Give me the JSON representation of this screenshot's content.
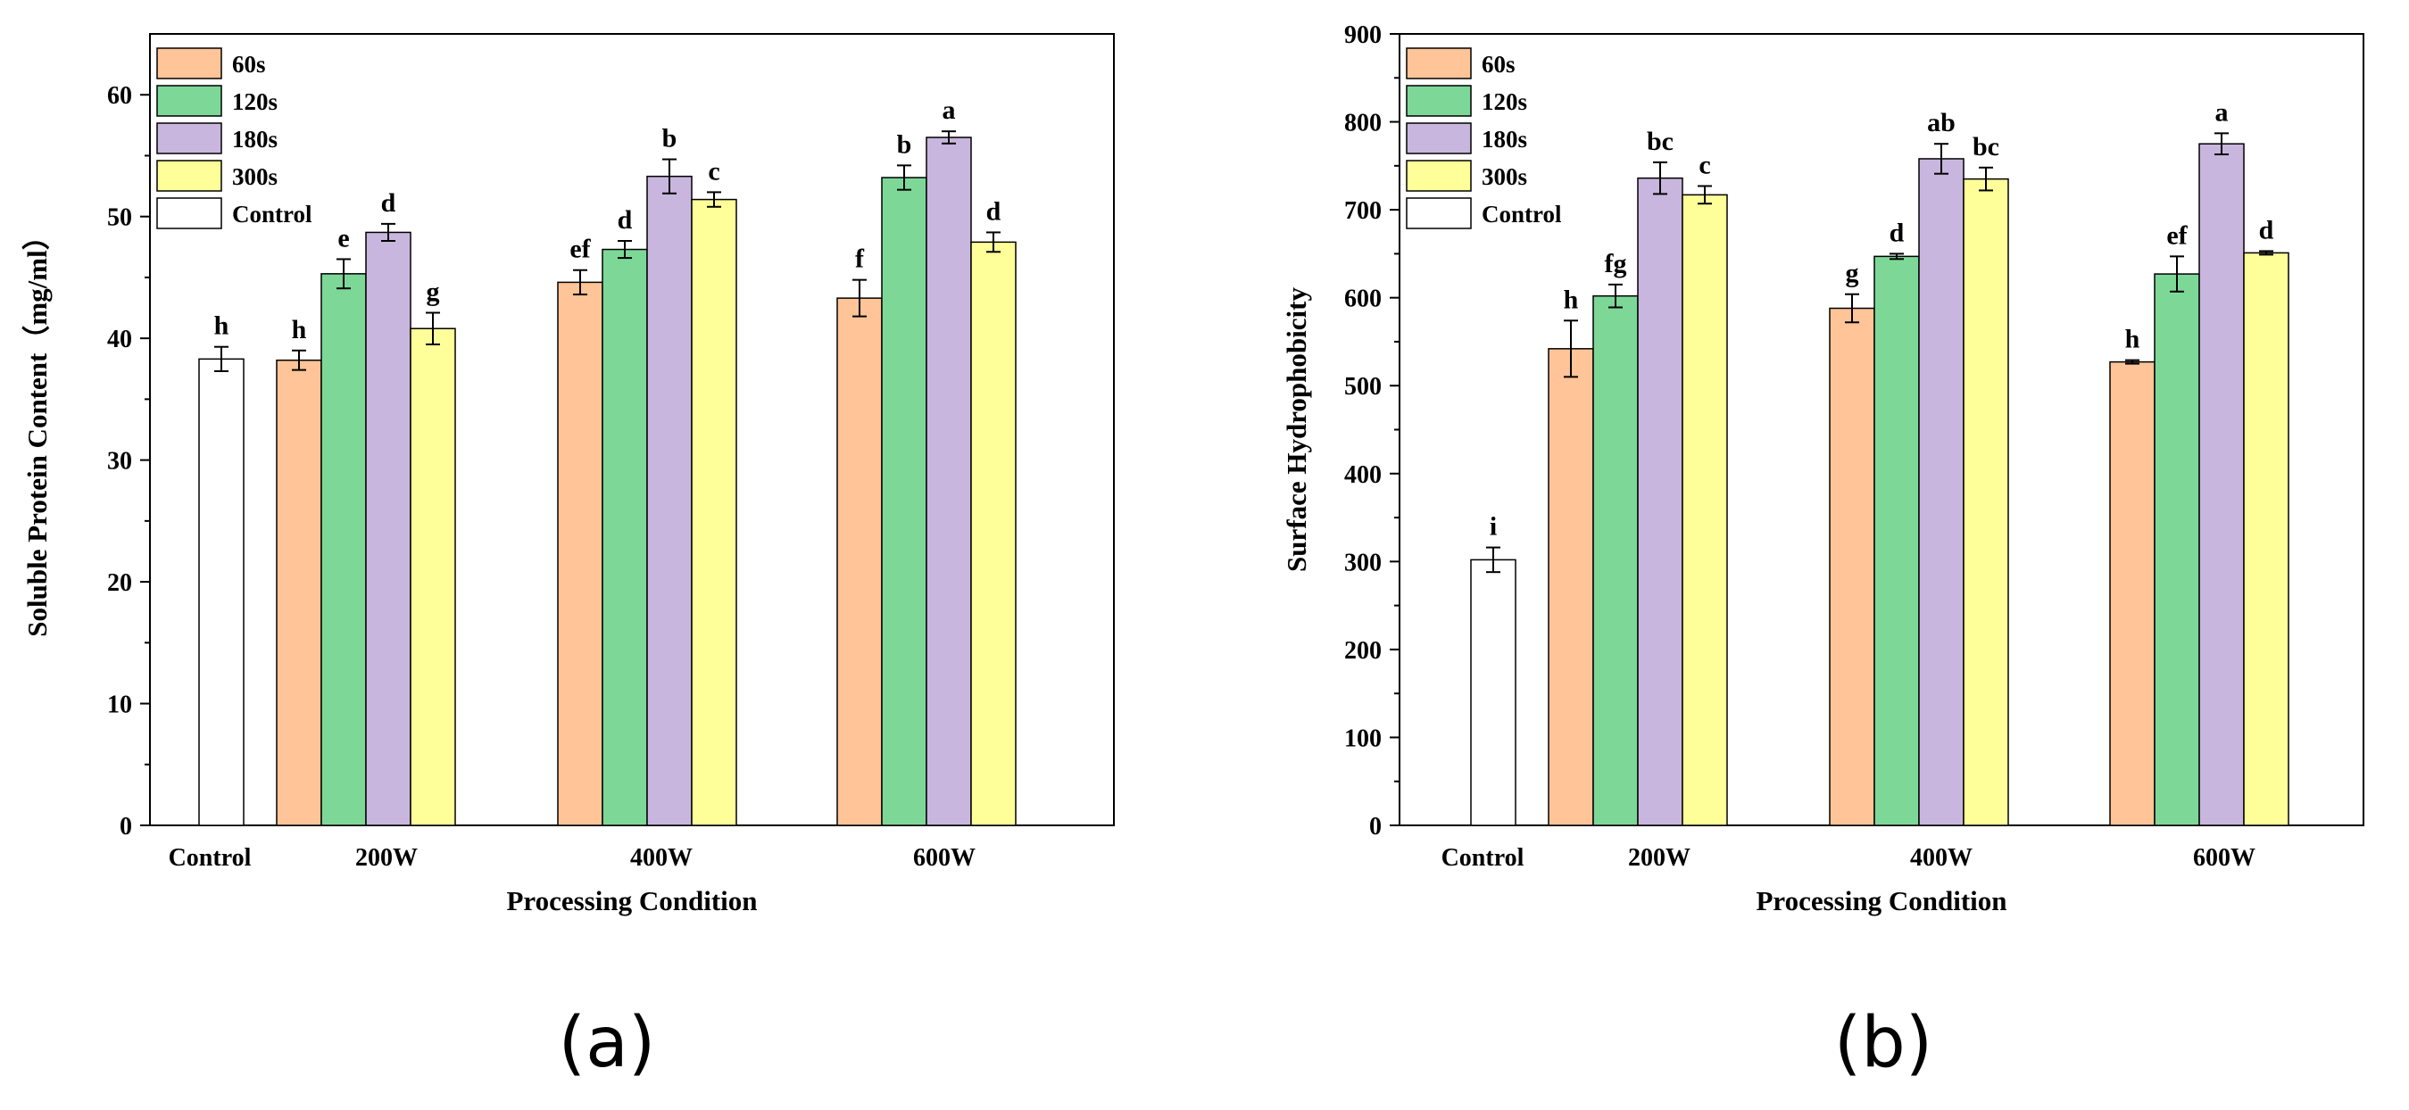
{
  "chart_data": [
    {
      "type": "bar",
      "panel_label": "(a)",
      "xlabel": "Processing Condition",
      "ylabel": "Soluble Protein Content（mg/ml）",
      "ylim": [
        0,
        65
      ],
      "yticks": [
        0,
        10,
        20,
        30,
        40,
        50,
        60
      ],
      "grid": false,
      "legend_position": "top-left",
      "legend": [
        "60s",
        "120s",
        "180s",
        "300s",
        "Control"
      ],
      "colors": {
        "60s": "#FFC497",
        "120s": "#7DD898",
        "180s": "#C9B6DE",
        "300s": "#FFFF99",
        "Control": "#FFFFFF"
      },
      "control": {
        "category": "Control",
        "value": 38.3,
        "error": 1.0,
        "sig": "h"
      },
      "categories": [
        "200W",
        "400W",
        "600W"
      ],
      "series": [
        {
          "name": "60s",
          "values": [
            38.2,
            44.6,
            43.3
          ],
          "errors": [
            0.8,
            1.0,
            1.5
          ],
          "sig": [
            "h",
            "ef",
            "f"
          ]
        },
        {
          "name": "120s",
          "values": [
            45.3,
            47.3,
            53.2
          ],
          "errors": [
            1.2,
            0.7,
            1.0
          ],
          "sig": [
            "e",
            "d",
            "b"
          ]
        },
        {
          "name": "180s",
          "values": [
            48.7,
            53.3,
            56.5
          ],
          "errors": [
            0.7,
            1.4,
            0.5
          ],
          "sig": [
            "d",
            "b",
            "a"
          ]
        },
        {
          "name": "300s",
          "values": [
            40.8,
            51.4,
            47.9
          ],
          "errors": [
            1.3,
            0.6,
            0.8
          ],
          "sig": [
            "g",
            "c",
            "d"
          ]
        }
      ]
    },
    {
      "type": "bar",
      "panel_label": "(b)",
      "xlabel": "Processing Condition",
      "ylabel": "Surface Hydrophobicity",
      "ylim": [
        0,
        900
      ],
      "yticks": [
        0,
        100,
        200,
        300,
        400,
        500,
        600,
        700,
        800,
        900
      ],
      "grid": false,
      "legend_position": "top-left",
      "legend": [
        "60s",
        "120s",
        "180s",
        "300s",
        "Control"
      ],
      "colors": {
        "60s": "#FFC497",
        "120s": "#7DD898",
        "180s": "#C9B6DE",
        "300s": "#FFFF99",
        "Control": "#FFFFFF"
      },
      "control": {
        "category": "Control",
        "value": 302,
        "error": 14,
        "sig": "i"
      },
      "categories": [
        "200W",
        "400W",
        "600W"
      ],
      "series": [
        {
          "name": "60s",
          "values": [
            542,
            588,
            527
          ],
          "errors": [
            32,
            16,
            2
          ],
          "sig": [
            "h",
            "g",
            "h"
          ]
        },
        {
          "name": "120s",
          "values": [
            602,
            647,
            627
          ],
          "errors": [
            13,
            3,
            20
          ],
          "sig": [
            "fg",
            "d",
            "ef"
          ]
        },
        {
          "name": "180s",
          "values": [
            736,
            758,
            775
          ],
          "errors": [
            18,
            17,
            12
          ],
          "sig": [
            "bc",
            "ab",
            "a"
          ]
        },
        {
          "name": "300s",
          "values": [
            717,
            735,
            651
          ],
          "errors": [
            10,
            13,
            2
          ],
          "sig": [
            "c",
            "bc",
            "d"
          ]
        }
      ]
    }
  ]
}
